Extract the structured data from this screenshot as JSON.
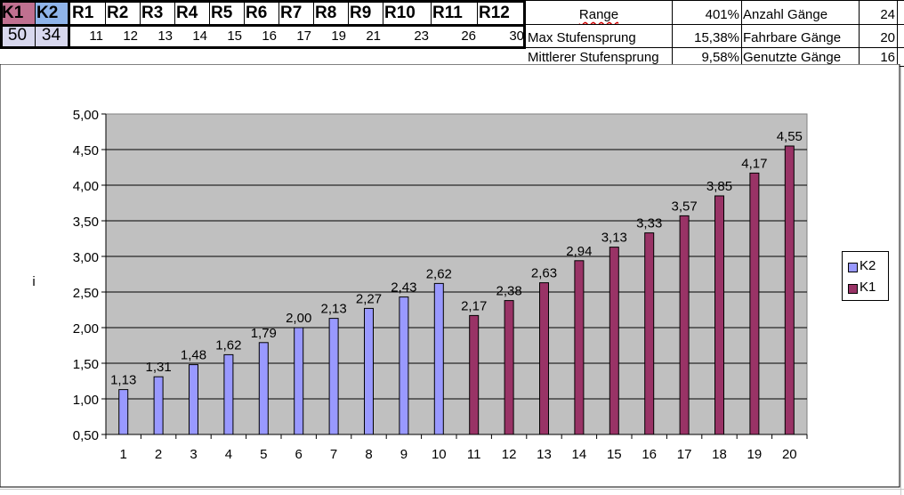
{
  "sheet": {
    "chainrings": [
      {
        "label": "K1",
        "value": "50",
        "color": "#c07090"
      },
      {
        "label": "K2",
        "value": "34",
        "color": "#8fb4ea"
      }
    ],
    "sprockets": [
      {
        "label": "R1",
        "value": "11"
      },
      {
        "label": "R2",
        "value": "12"
      },
      {
        "label": "R3",
        "value": "13"
      },
      {
        "label": "R4",
        "value": "14"
      },
      {
        "label": "R5",
        "value": "15"
      },
      {
        "label": "R6",
        "value": "16"
      },
      {
        "label": "R7",
        "value": "17"
      },
      {
        "label": "R8",
        "value": "19"
      },
      {
        "label": "R9",
        "value": "21"
      },
      {
        "label": "R10",
        "value": "23"
      },
      {
        "label": "R11",
        "value": "26"
      },
      {
        "label": "R12",
        "value": "30"
      }
    ],
    "stats": [
      {
        "label": "Range",
        "value": "401%"
      },
      {
        "label": "Max Stufensprung",
        "value": "15,38%"
      },
      {
        "label": "Mittlerer Stufensprung",
        "value": "9,58%"
      }
    ],
    "gears": [
      {
        "label": "Anzahl Gänge",
        "value": "24"
      },
      {
        "label": "Fahrbare Gänge",
        "value": "20"
      },
      {
        "label": "Genutzte Gänge",
        "value": "16"
      }
    ]
  },
  "chart_data": {
    "type": "bar",
    "title": "",
    "xlabel": "",
    "ylabel": "i",
    "categories": [
      "1",
      "2",
      "3",
      "4",
      "5",
      "6",
      "7",
      "8",
      "9",
      "10",
      "11",
      "12",
      "13",
      "14",
      "15",
      "16",
      "17",
      "18",
      "19",
      "20"
    ],
    "ylim": [
      0.5,
      5.0
    ],
    "yticks": [
      "0,50",
      "1,00",
      "1,50",
      "2,00",
      "2,50",
      "3,00",
      "3,50",
      "4,00",
      "4,50",
      "5,00"
    ],
    "yticks_values": [
      0.5,
      1.0,
      1.5,
      2.0,
      2.5,
      3.0,
      3.5,
      4.0,
      4.5,
      5.0
    ],
    "grid": true,
    "plot_background": "#c0c0c0",
    "legend_position": "right",
    "series": [
      {
        "name": "K2",
        "color": "#9999ff",
        "values": [
          1.13,
          1.31,
          1.48,
          1.62,
          1.79,
          2.0,
          2.13,
          2.27,
          2.43,
          2.62,
          null,
          null,
          null,
          null,
          null,
          null,
          null,
          null,
          null,
          null
        ],
        "labels": [
          "1,13",
          "1,31",
          "1,48",
          "1,62",
          "1,79",
          "2,00",
          "2,13",
          "2,27",
          "2,43",
          "2,62",
          "",
          "",
          "",
          "",
          "",
          "",
          "",
          "",
          "",
          ""
        ]
      },
      {
        "name": "K1",
        "color": "#993366",
        "values": [
          null,
          null,
          null,
          null,
          null,
          null,
          null,
          null,
          null,
          null,
          2.17,
          2.38,
          2.63,
          2.94,
          3.13,
          3.33,
          3.57,
          3.85,
          4.17,
          4.55
        ],
        "labels": [
          "",
          "",
          "",
          "",
          "",
          "",
          "",
          "",
          "",
          "",
          "2,17",
          "2,38",
          "2,63",
          "2,94",
          "3,13",
          "3,33",
          "3,57",
          "3,85",
          "4,17",
          "4,55"
        ]
      }
    ]
  }
}
